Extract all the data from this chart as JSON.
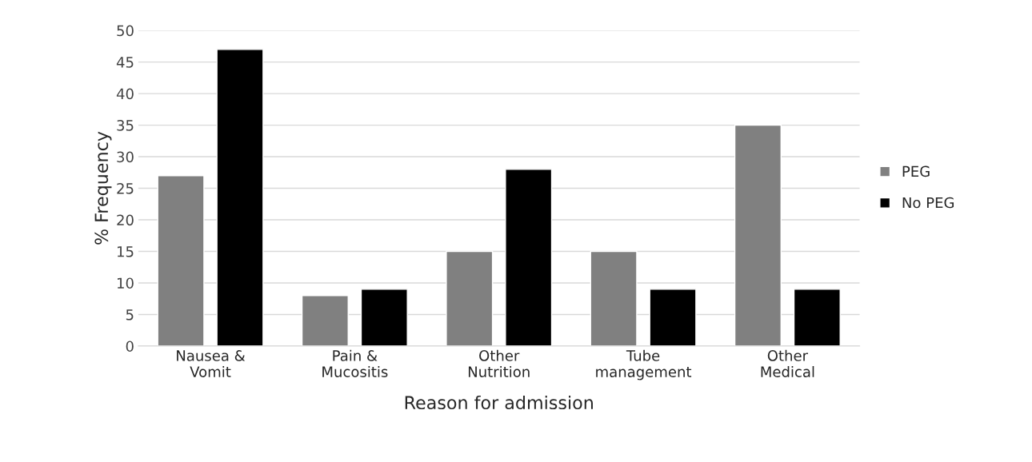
{
  "chart_data": {
    "type": "bar",
    "xlabel": "Reason for admission",
    "ylabel": "% Frequency",
    "categories": [
      "Nausea &\nVomit",
      "Pain &\nMucositis",
      "Other\nNutrition",
      "Tube\nmanagement",
      "Other\nMedical"
    ],
    "series": [
      {
        "name": "PEG",
        "color": "#808080",
        "values": [
          27,
          8,
          15,
          15,
          35
        ]
      },
      {
        "name": "No PEG",
        "color": "#000000",
        "values": [
          47,
          9,
          28,
          9,
          9
        ]
      }
    ],
    "ylim": [
      0,
      50
    ],
    "yticks": [
      0,
      5,
      10,
      15,
      20,
      25,
      30,
      35,
      40,
      45,
      50
    ],
    "grid": "y",
    "legend": "right"
  }
}
